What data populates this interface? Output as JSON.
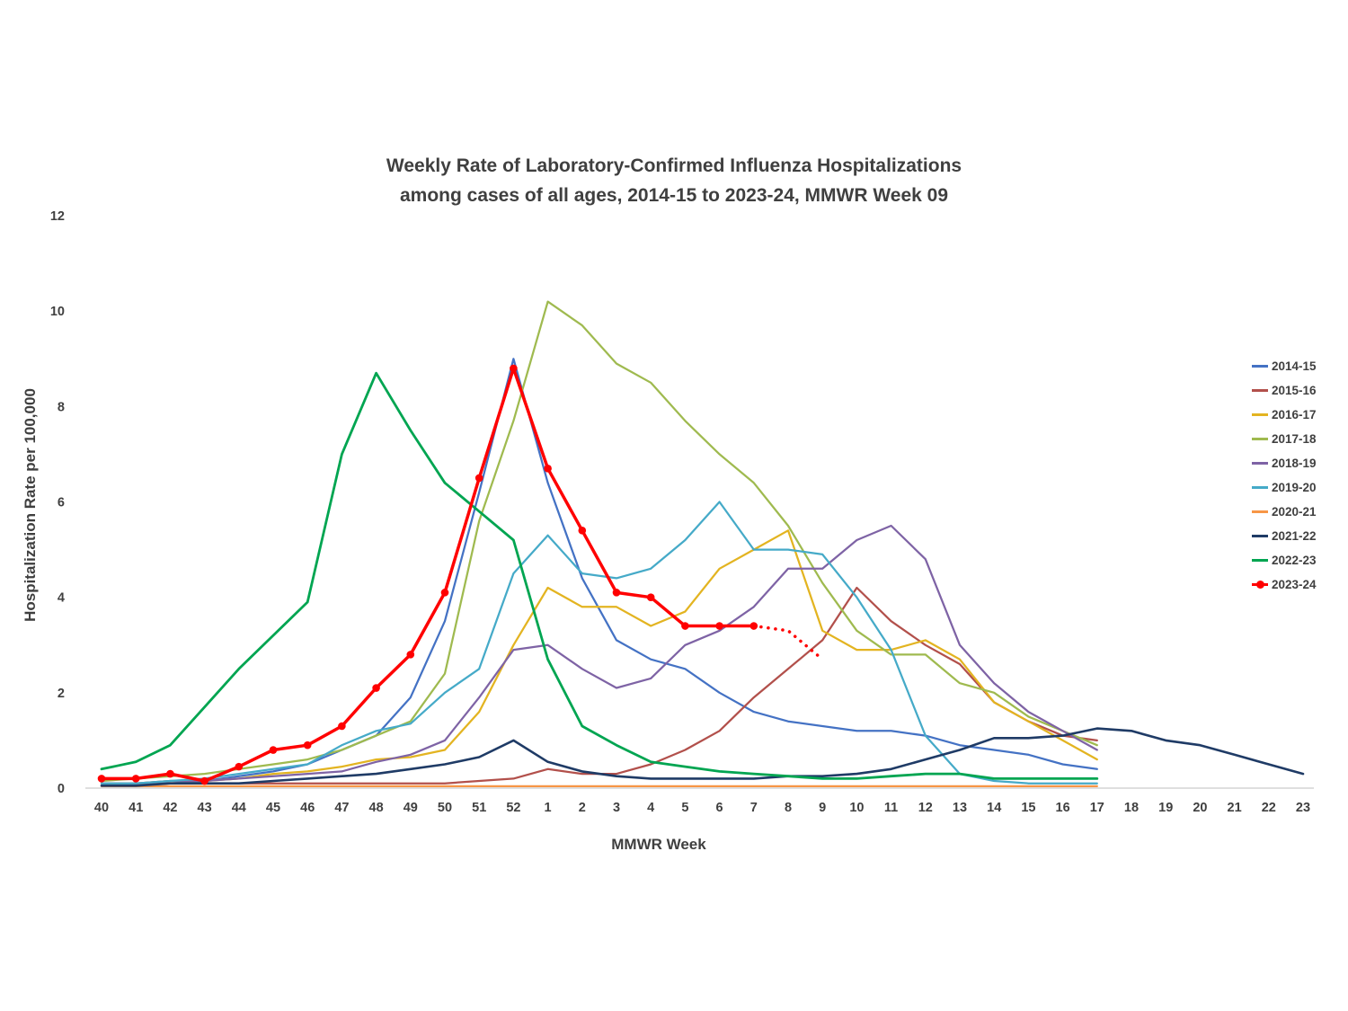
{
  "chart": {
    "title_line1": "Weekly Rate of Laboratory-Confirmed Influenza Hospitalizations",
    "title_line2": "among cases of all ages, 2014-15 to 2023-24, MMWR Week 09",
    "xlabel": "MMWR Week",
    "ylabel": "Hospitalization Rate per 100,000"
  },
  "chart_data": {
    "type": "line",
    "title": "Weekly Rate of Laboratory-Confirmed Influenza Hospitalizations among cases of all ages, 2014-15 to 2023-24, MMWR Week 09",
    "xlabel": "MMWR Week",
    "ylabel": "Hospitalization Rate per 100,000",
    "ylim": [
      0,
      12
    ],
    "yticks": [
      0,
      2,
      4,
      6,
      8,
      10,
      12
    ],
    "grid": false,
    "legend_position": "right",
    "categories": [
      "40",
      "41",
      "42",
      "43",
      "44",
      "45",
      "46",
      "47",
      "48",
      "49",
      "50",
      "51",
      "52",
      "1",
      "2",
      "3",
      "4",
      "5",
      "6",
      "7",
      "8",
      "9",
      "10",
      "11",
      "12",
      "13",
      "14",
      "15",
      "16",
      "17",
      "18",
      "19",
      "20",
      "21",
      "22",
      "23"
    ],
    "series": [
      {
        "name": "2014-15",
        "color": "#4472C4",
        "values": [
          0.1,
          0.1,
          0.1,
          0.15,
          0.25,
          0.35,
          0.5,
          0.8,
          1.1,
          1.9,
          3.5,
          6.2,
          9.0,
          6.4,
          4.4,
          3.1,
          2.7,
          2.5,
          2.0,
          1.6,
          1.4,
          1.3,
          1.2,
          1.2,
          1.1,
          0.9,
          0.8,
          0.7,
          0.5,
          0.4,
          null,
          null,
          null,
          null,
          null,
          null
        ]
      },
      {
        "name": "2015-16",
        "color": "#B2504B",
        "values": [
          0.05,
          0.05,
          0.1,
          0.1,
          0.1,
          0.1,
          0.1,
          0.1,
          0.1,
          0.1,
          0.1,
          0.15,
          0.2,
          0.4,
          0.3,
          0.3,
          0.5,
          0.8,
          1.2,
          1.9,
          2.5,
          3.1,
          4.2,
          3.5,
          3.0,
          2.6,
          1.8,
          1.4,
          1.1,
          1.0,
          null,
          null,
          null,
          null,
          null,
          null
        ]
      },
      {
        "name": "2016-17",
        "color": "#E3B421",
        "values": [
          0.1,
          0.1,
          0.15,
          0.15,
          0.2,
          0.3,
          0.35,
          0.45,
          0.6,
          0.65,
          0.8,
          1.6,
          3.0,
          4.2,
          3.8,
          3.8,
          3.4,
          3.7,
          4.6,
          5.0,
          5.4,
          3.3,
          2.9,
          2.9,
          3.1,
          2.7,
          1.8,
          1.4,
          1.0,
          0.6,
          null,
          null,
          null,
          null,
          null,
          null
        ]
      },
      {
        "name": "2017-18",
        "color": "#9FBA4F",
        "values": [
          0.15,
          0.2,
          0.25,
          0.3,
          0.4,
          0.5,
          0.6,
          0.8,
          1.1,
          1.4,
          2.4,
          5.6,
          7.7,
          10.2,
          9.7,
          8.9,
          8.5,
          7.7,
          7.0,
          6.4,
          5.5,
          4.3,
          3.3,
          2.8,
          2.8,
          2.2,
          2.0,
          1.5,
          1.2,
          0.9,
          null,
          null,
          null,
          null,
          null,
          null
        ]
      },
      {
        "name": "2018-19",
        "color": "#7E63A5",
        "values": [
          0.1,
          0.1,
          0.15,
          0.15,
          0.2,
          0.25,
          0.3,
          0.35,
          0.55,
          0.7,
          1.0,
          1.9,
          2.9,
          3.0,
          2.5,
          2.1,
          2.3,
          3.0,
          3.3,
          3.8,
          4.6,
          4.6,
          5.2,
          5.5,
          4.8,
          3.0,
          2.2,
          1.6,
          1.2,
          0.8,
          null,
          null,
          null,
          null,
          null,
          null
        ]
      },
      {
        "name": "2019-20",
        "color": "#45AAC8",
        "values": [
          0.1,
          0.1,
          0.15,
          0.2,
          0.3,
          0.4,
          0.5,
          0.9,
          1.2,
          1.35,
          2.0,
          2.5,
          4.5,
          5.3,
          4.5,
          4.4,
          4.6,
          5.2,
          6.0,
          5.0,
          5.0,
          4.9,
          4.0,
          2.9,
          1.1,
          0.3,
          0.15,
          0.1,
          0.1,
          0.1,
          null,
          null,
          null,
          null,
          null,
          null
        ]
      },
      {
        "name": "2020-21",
        "color": "#F79646",
        "values": [
          0.04,
          0.04,
          0.04,
          0.04,
          0.04,
          0.04,
          0.04,
          0.04,
          0.04,
          0.04,
          0.04,
          0.04,
          0.04,
          0.04,
          0.04,
          0.04,
          0.04,
          0.04,
          0.04,
          0.04,
          0.04,
          0.04,
          0.04,
          0.04,
          0.04,
          0.04,
          0.04,
          0.04,
          0.04,
          0.04,
          null,
          null,
          null,
          null,
          null,
          null
        ]
      },
      {
        "name": "2021-22",
        "color": "#1F3B66",
        "line_width": 2.6,
        "values": [
          0.05,
          0.05,
          0.1,
          0.1,
          0.1,
          0.15,
          0.2,
          0.25,
          0.3,
          0.4,
          0.5,
          0.65,
          1.0,
          0.55,
          0.35,
          0.25,
          0.2,
          0.2,
          0.2,
          0.2,
          0.25,
          0.25,
          0.3,
          0.4,
          0.6,
          0.8,
          1.05,
          1.05,
          1.1,
          1.25,
          1.2,
          1.0,
          0.9,
          0.7,
          0.5,
          0.3
        ]
      },
      {
        "name": "2022-23",
        "color": "#00A551",
        "line_width": 2.8,
        "values": [
          0.4,
          0.55,
          0.9,
          1.7,
          2.5,
          3.2,
          3.9,
          7.0,
          8.7,
          7.5,
          6.4,
          5.8,
          5.2,
          2.7,
          1.3,
          0.9,
          0.55,
          0.45,
          0.35,
          0.3,
          0.25,
          0.2,
          0.2,
          0.25,
          0.3,
          0.3,
          0.2,
          0.2,
          0.2,
          0.2,
          null,
          null,
          null,
          null,
          null,
          null
        ]
      },
      {
        "name": "2023-24",
        "color": "#FF0000",
        "line_width": 3.5,
        "marker": true,
        "values": [
          0.2,
          0.2,
          0.3,
          0.15,
          0.45,
          0.8,
          0.9,
          1.3,
          2.1,
          2.8,
          4.1,
          6.5,
          8.8,
          6.7,
          5.4,
          4.1,
          4.0,
          3.4,
          3.4,
          3.4,
          null,
          null,
          null,
          null,
          null,
          null,
          null,
          null,
          null,
          null,
          null,
          null,
          null,
          null,
          null,
          null
        ],
        "projection": {
          "style": "dotted",
          "values": [
            null,
            null,
            null,
            null,
            null,
            null,
            null,
            null,
            null,
            null,
            null,
            null,
            null,
            null,
            null,
            null,
            null,
            null,
            null,
            3.4,
            3.3,
            2.7,
            null,
            null,
            null,
            null,
            null,
            null,
            null,
            null,
            null,
            null,
            null,
            null,
            null,
            null
          ]
        }
      }
    ]
  }
}
